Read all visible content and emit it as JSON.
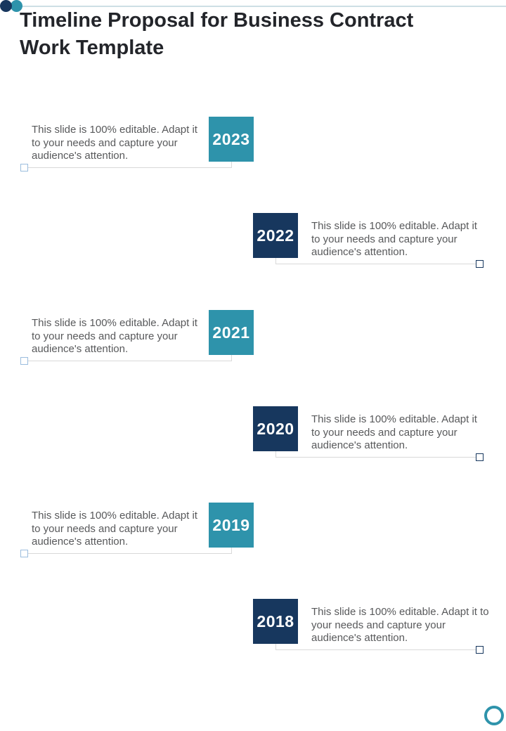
{
  "slide": {
    "title": "Timeline Proposal for Business Contract Work Template"
  },
  "decor": {
    "top_left_dot_1": "navy-dot-icon",
    "top_left_dot_2": "teal-dot-icon",
    "top_divider": "horizontal-line",
    "bottom_right": "teal-ring-icon"
  },
  "colors": {
    "teal": "#2E93AB",
    "navy": "#17375E",
    "title_text": "#23252A",
    "body_text": "#58595B",
    "connector_line": "#D9D9D9",
    "left_marker_border": "#9BBDDE",
    "right_marker_border": "#17375E",
    "top_line": "#CDDFE5"
  },
  "timeline": {
    "entries": [
      {
        "year": "2023",
        "side": "left",
        "accent": "teal",
        "description": "This slide is 100% editable. Adapt it to your needs and capture your audience's attention."
      },
      {
        "year": "2022",
        "side": "right",
        "accent": "navy",
        "description": "This slide is 100% editable. Adapt it to your needs and capture your audience's attention."
      },
      {
        "year": "2021",
        "side": "left",
        "accent": "teal",
        "description": "This slide is 100% editable. Adapt it to your needs and capture your audience's attention."
      },
      {
        "year": "2020",
        "side": "right",
        "accent": "navy",
        "description": "This slide is 100% editable. Adapt it to your needs and capture your audience's attention."
      },
      {
        "year": "2019",
        "side": "left",
        "accent": "teal",
        "description": "This slide is 100% editable. Adapt it to your needs and capture your audience's attention."
      },
      {
        "year": "2018",
        "side": "right",
        "accent": "navy",
        "description": "This slide is 100% editable. Adapt it to your needs and capture your audience's attention."
      }
    ]
  }
}
